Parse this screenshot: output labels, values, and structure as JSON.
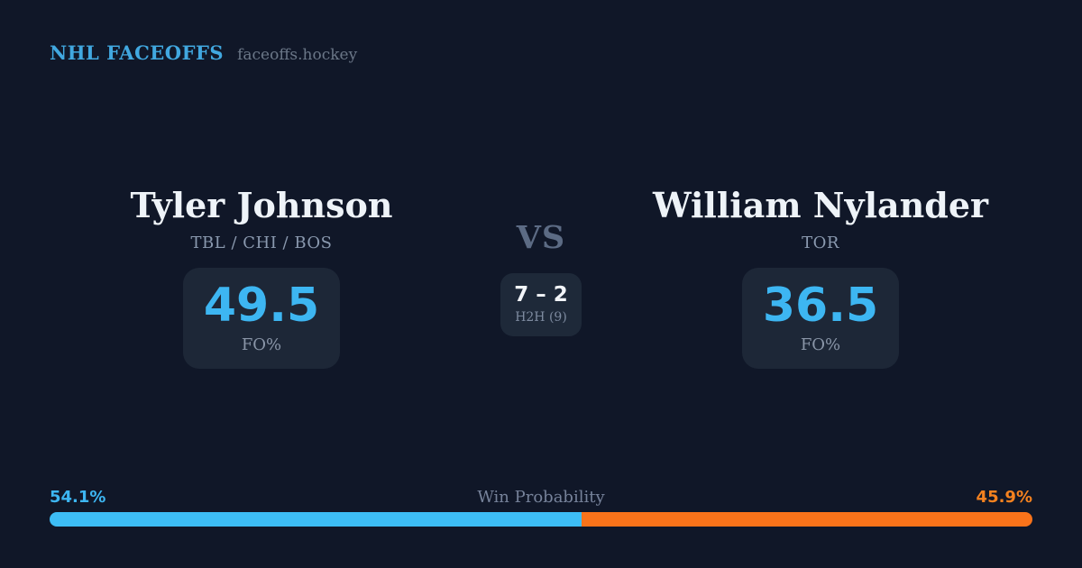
{
  "header": {
    "brand": "NHL FACEOFFS",
    "site": "faceoffs.hockey"
  },
  "players": {
    "left": {
      "name": "Tyler Johnson",
      "teams": "TBL / CHI / BOS",
      "stat_value": "49.5",
      "stat_label": "FO%"
    },
    "right": {
      "name": "William Nylander",
      "teams": "TOR",
      "stat_value": "36.5",
      "stat_label": "FO%"
    }
  },
  "center": {
    "vs_label": "VS",
    "h2h_score": "7 – 2",
    "h2h_label": "H2H (9)"
  },
  "win_probability": {
    "title": "Win Probability",
    "left_pct_label": "54.1%",
    "right_pct_label": "45.9%",
    "left_value": 54.1,
    "right_value": 45.9
  },
  "colors": {
    "background": "#101728",
    "card_background": "#1d2737",
    "accent_blue": "#3db6f2",
    "header_blue": "#41a8e0",
    "bar_blue": "#3dbdf5",
    "orange": "#f5821f",
    "bar_orange": "#f9731a"
  }
}
